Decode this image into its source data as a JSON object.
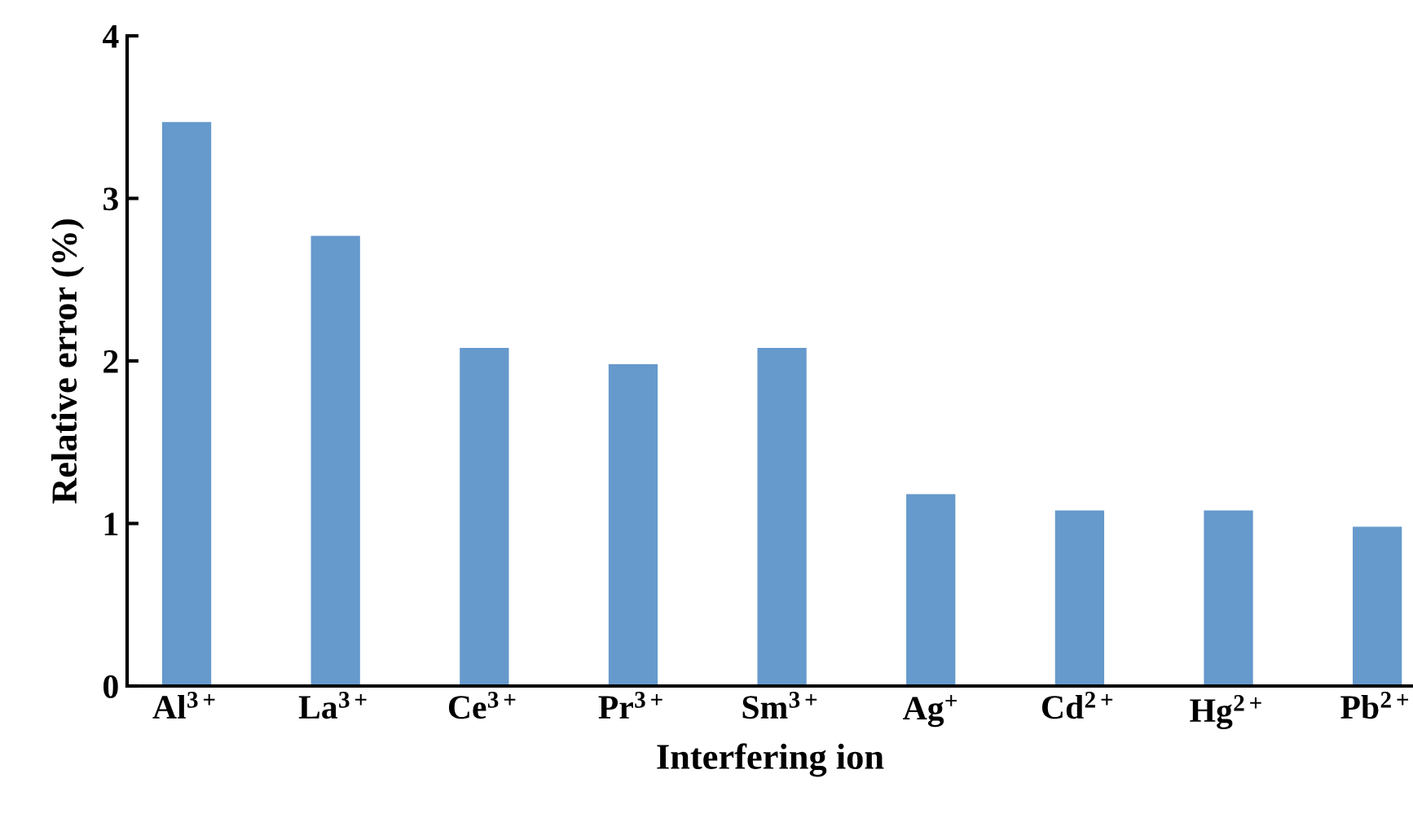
{
  "chart_data": {
    "type": "bar",
    "xlabel": "Interfering ion",
    "ylabel": "Relative error (%)",
    "categories": [
      "Al$^{3+}$",
      "La$^{3+}$",
      "Ce$^{3+}$",
      "Pr$^{3+}$",
      "Sm$^{3+}$",
      "Ag$^{+}$",
      "Cd$^{2+}$",
      "Hg$^{2+}$",
      "Pb$^{2+}$"
    ],
    "values": [
      3.47,
      2.77,
      2.08,
      1.98,
      2.08,
      1.18,
      1.08,
      1.08,
      0.98
    ],
    "color": "#6699cc",
    "ylim": [
      0,
      4
    ],
    "yticks": [
      0,
      1,
      2,
      3,
      4
    ],
    "grid": false
  }
}
